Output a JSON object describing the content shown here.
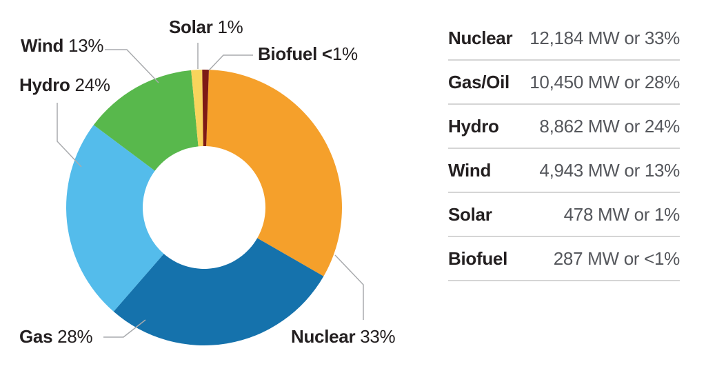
{
  "chart_data": {
    "type": "pie",
    "subtype": "donut",
    "title": "",
    "categories": [
      "Nuclear",
      "Gas",
      "Hydro",
      "Wind",
      "Solar",
      "Biofuel"
    ],
    "values_mw": [
      12184,
      10450,
      8862,
      4943,
      478,
      287
    ],
    "percent_labels": [
      "33%",
      "28%",
      "24%",
      "13%",
      "1%",
      "<1%"
    ],
    "colors": [
      "#F5A02B",
      "#1572AC",
      "#54BCEB",
      "#58B84C",
      "#F8D45C",
      "#7E1A15"
    ],
    "direction": "clockwise",
    "rotation_deg": 2,
    "legend_position": "right-table",
    "leader_line_color": "#A8AAAD"
  },
  "chart_labels": {
    "solar": {
      "bold": "Solar",
      "rest": " 1%"
    },
    "wind": {
      "bold": "Wind",
      "rest": " 13%"
    },
    "hydro": {
      "bold": "Hydro",
      "rest": " 24%"
    },
    "gas": {
      "bold": "Gas",
      "rest": " 28%"
    },
    "nuclear": {
      "bold": "Nuclear",
      "rest": " 33%"
    },
    "biofuel": {
      "bold": "Biofuel <",
      "rest": "1%"
    }
  },
  "table": {
    "rows": [
      {
        "label": "Nuclear",
        "value": "12,184 MW or 33%"
      },
      {
        "label": "Gas/Oil",
        "value": "10,450 MW or 28%"
      },
      {
        "label": "Hydro",
        "value": "8,862 MW or 24%"
      },
      {
        "label": "Wind",
        "value": "4,943 MW or 13%"
      },
      {
        "label": "Solar",
        "value": "478 MW or 1%"
      },
      {
        "label": "Biofuel",
        "value": "287 MW or <1%"
      }
    ]
  }
}
